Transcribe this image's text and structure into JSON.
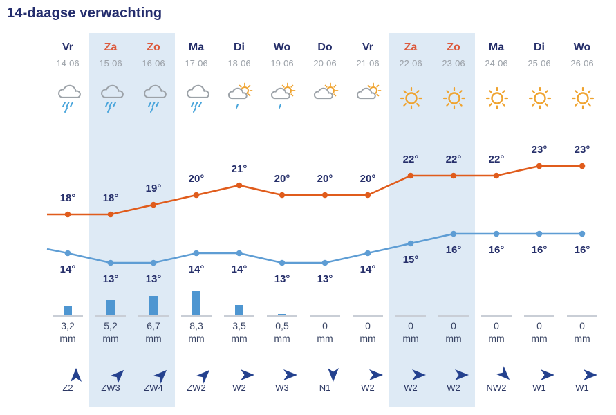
{
  "title": "14-daagse verwachting",
  "colors": {
    "title_navy": "#242D6D",
    "day_navy": "#262F6A",
    "weekend_day_orange": "#DC5A3D",
    "date_gray": "#9BA1A8",
    "weekend_band": "#DEEAF5",
    "max_line_orange": "#E05C1C",
    "min_line_blue": "#5E9DD4",
    "precip_bar_blue": "#4E96D1",
    "precip_baseline_gray": "#C9CED6",
    "cloud_gray": "#9CA2A8",
    "rain_blue": "#49A5DB",
    "sun_orange": "#EFA32F",
    "wind_arrow_navy": "#24418E"
  },
  "chart_data": {
    "type": "line",
    "title": "14-daagse verwachting",
    "categories": [
      "Vr 14-06",
      "Za 15-06",
      "Zo 16-06",
      "Ma 17-06",
      "Di 18-06",
      "Wo 19-06",
      "Do 20-06",
      "Vr 21-06",
      "Za 22-06",
      "Zo 23-06",
      "Ma 24-06",
      "Di 25-06",
      "Wo 26-06"
    ],
    "series": [
      {
        "name": "max-temp-c",
        "type": "line",
        "color": "#E05C1C",
        "values": [
          18,
          18,
          19,
          20,
          21,
          20,
          20,
          20,
          22,
          22,
          22,
          23,
          23
        ]
      },
      {
        "name": "min-temp-c",
        "type": "line",
        "color": "#5E9DD4",
        "values": [
          14,
          13,
          13,
          14,
          14,
          13,
          13,
          14,
          15,
          16,
          16,
          16,
          16
        ]
      },
      {
        "name": "precipitation-mm",
        "type": "bar",
        "color": "#4E96D1",
        "values": [
          3.2,
          5.2,
          6.7,
          8.3,
          3.5,
          0.5,
          0,
          0,
          0,
          0,
          0,
          0,
          0
        ]
      }
    ],
    "ylim": [
      12,
      24
    ],
    "grid": false,
    "legend": "none"
  },
  "columns": [
    {
      "day": "Vr",
      "date": "14-06",
      "weekend": false,
      "icon": "rain",
      "tmax": 18,
      "tmin": 14,
      "precip": "3,2",
      "precip_unit": "mm",
      "precip_mm": 3.2,
      "wind": "Z2",
      "wind_dir": "up"
    },
    {
      "day": "Za",
      "date": "15-06",
      "weekend": true,
      "icon": "rain",
      "tmax": 18,
      "tmin": 13,
      "precip": "5,2",
      "precip_unit": "mm",
      "precip_mm": 5.2,
      "wind": "ZW3",
      "wind_dir": "up-right"
    },
    {
      "day": "Zo",
      "date": "16-06",
      "weekend": true,
      "icon": "rain",
      "tmax": 19,
      "tmin": 13,
      "precip": "6,7",
      "precip_unit": "mm",
      "precip_mm": 6.7,
      "wind": "ZW4",
      "wind_dir": "up-right"
    },
    {
      "day": "Ma",
      "date": "17-06",
      "weekend": false,
      "icon": "rain",
      "tmax": 20,
      "tmin": 14,
      "precip": "8,3",
      "precip_unit": "mm",
      "precip_mm": 8.3,
      "wind": "ZW2",
      "wind_dir": "up-right"
    },
    {
      "day": "Di",
      "date": "18-06",
      "weekend": false,
      "icon": "sun-cloud-drizzle",
      "tmax": 21,
      "tmin": 14,
      "precip": "3,5",
      "precip_unit": "mm",
      "precip_mm": 3.5,
      "wind": "W2",
      "wind_dir": "right"
    },
    {
      "day": "Wo",
      "date": "19-06",
      "weekend": false,
      "icon": "sun-cloud-drizzle",
      "tmax": 20,
      "tmin": 13,
      "precip": "0,5",
      "precip_unit": "mm",
      "precip_mm": 0.5,
      "wind": "W3",
      "wind_dir": "right"
    },
    {
      "day": "Do",
      "date": "20-06",
      "weekend": false,
      "icon": "sun-cloud",
      "tmax": 20,
      "tmin": 13,
      "precip": "0",
      "precip_unit": "mm",
      "precip_mm": 0,
      "wind": "N1",
      "wind_dir": "down"
    },
    {
      "day": "Vr",
      "date": "21-06",
      "weekend": false,
      "icon": "sun-cloud",
      "tmax": 20,
      "tmin": 14,
      "precip": "0",
      "precip_unit": "mm",
      "precip_mm": 0,
      "wind": "W2",
      "wind_dir": "right"
    },
    {
      "day": "Za",
      "date": "22-06",
      "weekend": true,
      "icon": "sun",
      "tmax": 22,
      "tmin": 15,
      "precip": "0",
      "precip_unit": "mm",
      "precip_mm": 0,
      "wind": "W2",
      "wind_dir": "right"
    },
    {
      "day": "Zo",
      "date": "23-06",
      "weekend": true,
      "icon": "sun",
      "tmax": 22,
      "tmin": 16,
      "precip": "0",
      "precip_unit": "mm",
      "precip_mm": 0,
      "wind": "W2",
      "wind_dir": "right"
    },
    {
      "day": "Ma",
      "date": "24-06",
      "weekend": false,
      "icon": "sun",
      "tmax": 22,
      "tmin": 16,
      "precip": "0",
      "precip_unit": "mm",
      "precip_mm": 0,
      "wind": "NW2",
      "wind_dir": "down-right"
    },
    {
      "day": "Di",
      "date": "25-06",
      "weekend": false,
      "icon": "sun",
      "tmax": 23,
      "tmin": 16,
      "precip": "0",
      "precip_unit": "mm",
      "precip_mm": 0,
      "wind": "W1",
      "wind_dir": "right"
    },
    {
      "day": "Wo",
      "date": "26-06",
      "weekend": false,
      "icon": "sun",
      "tmax": 23,
      "tmin": 16,
      "precip": "0",
      "precip_unit": "mm",
      "precip_mm": 0,
      "wind": "W1",
      "wind_dir": "right"
    }
  ]
}
